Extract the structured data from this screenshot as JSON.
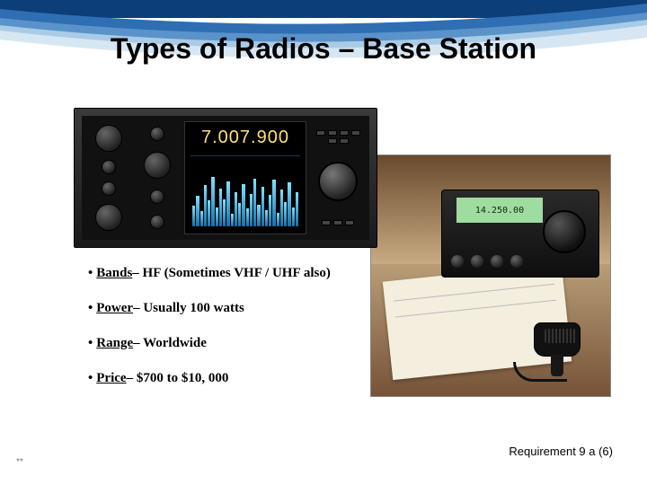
{
  "title": "Types of Radios – Base Station",
  "swoosh": {
    "top_color": "#0c3e7a",
    "band1": "#2f6eb3",
    "band2": "#5a93c9",
    "band3": "#a9cbe6",
    "band4": "#d6e7f3"
  },
  "radio1": {
    "frequency": "7.007.900",
    "spectrum_heights_pct": [
      30,
      45,
      22,
      60,
      38,
      72,
      28,
      55,
      40,
      66,
      18,
      50,
      34,
      62,
      26,
      48,
      70,
      32,
      58,
      24,
      46,
      68,
      20,
      54,
      36,
      64,
      28,
      50
    ]
  },
  "radio2": {
    "lcd_text": "14.250.00"
  },
  "bullets": [
    {
      "label": "Bands",
      "text": " – HF (Sometimes VHF / UHF also)"
    },
    {
      "label": "Power",
      "text": " – Usually 100 watts"
    },
    {
      "label": "Range",
      "text": " – Worldwide"
    },
    {
      "label": "Price",
      "text": " – $700 to $10, 000"
    }
  ],
  "footer": "Requirement 9 a (6)",
  "asterisk": "**"
}
